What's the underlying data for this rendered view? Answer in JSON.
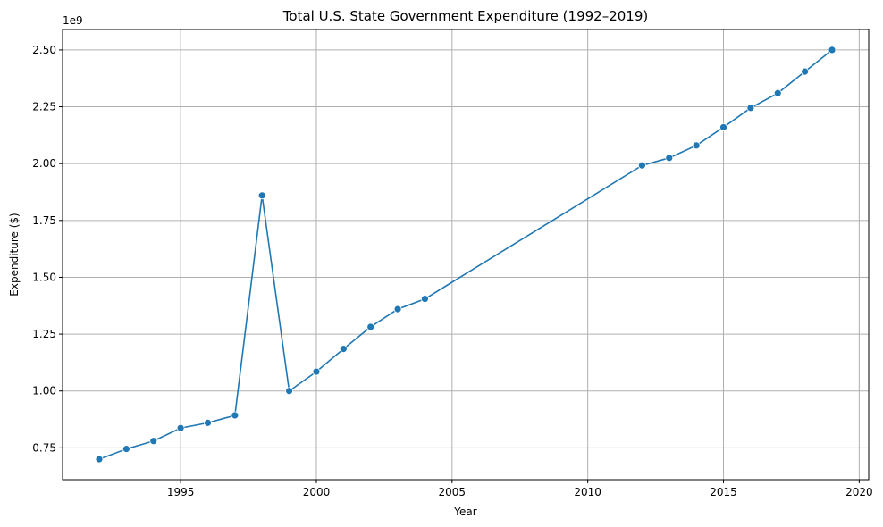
{
  "chart_data": {
    "type": "line",
    "title": "Total U.S. State Government Expenditure (1992–2019)",
    "xlabel": "Year",
    "ylabel": "Expenditure ($)",
    "y_offset_label": "1e9",
    "xlim": [
      1990.65,
      2020.35
    ],
    "ylim": [
      0.61,
      2.59
    ],
    "x_ticks": [
      1995,
      2000,
      2005,
      2010,
      2015,
      2020
    ],
    "x_tick_labels": [
      "1995",
      "2000",
      "2005",
      "2010",
      "2015",
      "2020"
    ],
    "y_ticks": [
      0.75,
      1.0,
      1.25,
      1.5,
      1.75,
      2.0,
      2.25,
      2.5
    ],
    "y_tick_labels": [
      "0.75",
      "1.00",
      "1.25",
      "1.50",
      "1.75",
      "2.00",
      "2.25",
      "2.50"
    ],
    "grid": true,
    "color": "#1f77b4",
    "series": [
      {
        "x": [
          1992,
          1993,
          1994,
          1995,
          1996,
          1997,
          1998,
          1999,
          2000,
          2001,
          2002,
          2003,
          2004,
          2012,
          2013,
          2014,
          2015,
          2016,
          2017,
          2018,
          2019
        ],
        "y": [
          0.7,
          0.745,
          0.78,
          0.837,
          0.86,
          0.893,
          1.86,
          1.0,
          1.085,
          1.185,
          1.282,
          1.36,
          1.405,
          1.992,
          2.025,
          2.08,
          2.16,
          2.245,
          2.31,
          2.405,
          2.5
        ]
      }
    ]
  }
}
